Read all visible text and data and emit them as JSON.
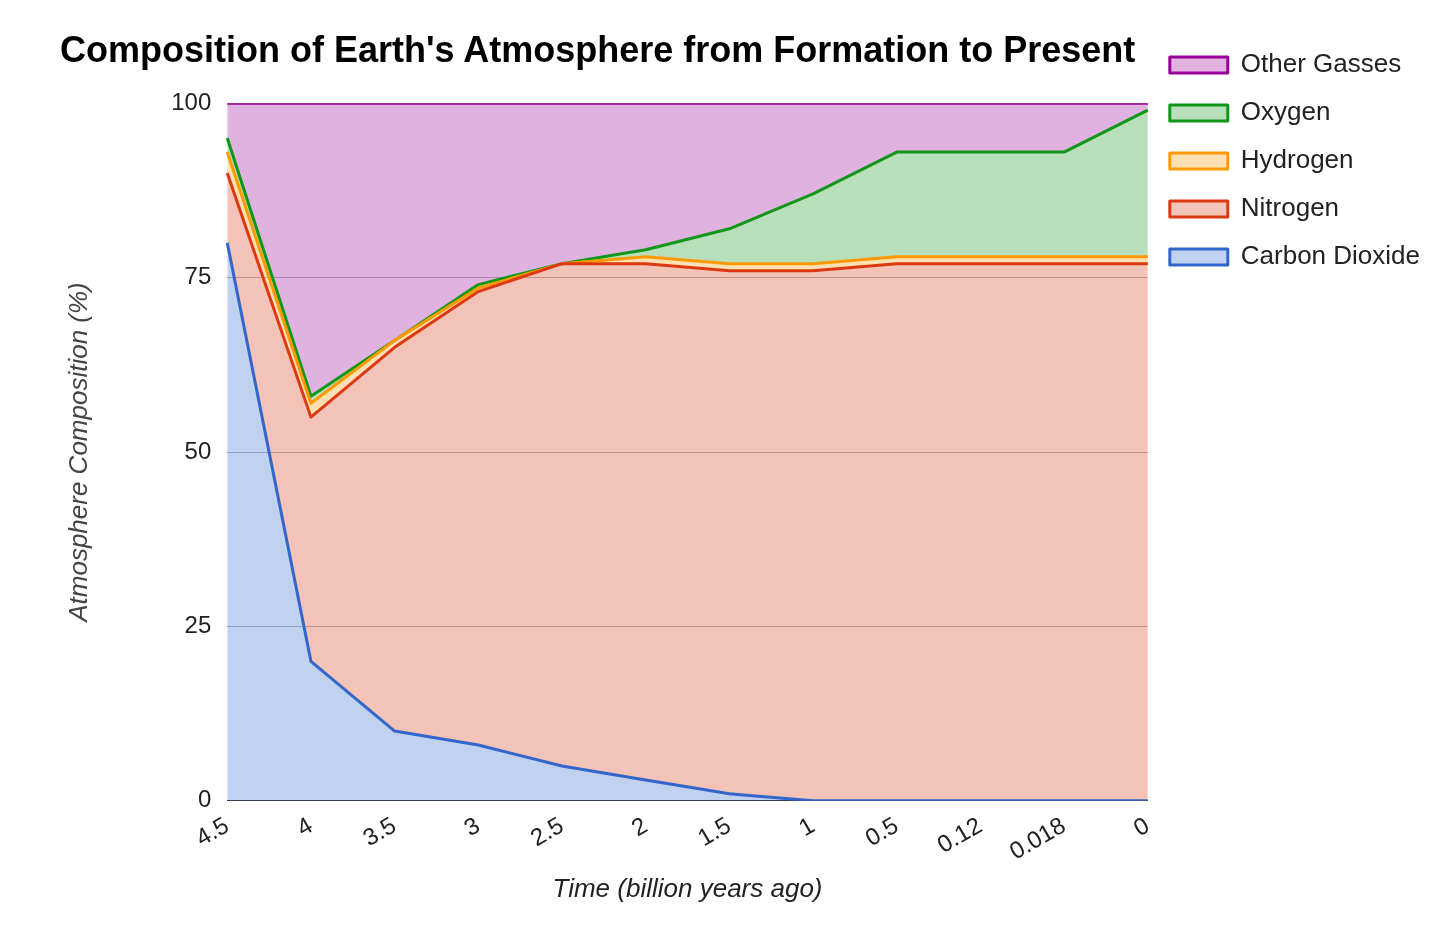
{
  "chart_data": {
    "type": "area",
    "stacked": true,
    "title": "Composition of Earth's Atmosphere from Formation to Present",
    "xlabel": "Time (billion years ago)",
    "ylabel": "Atmosphere Composition (%)",
    "categories": [
      "4.5",
      "4",
      "3.5",
      "3",
      "2.5",
      "2",
      "1.5",
      "1",
      "0.5",
      "0.12",
      "0.018",
      "0"
    ],
    "series": [
      {
        "name": "Carbon Dioxide",
        "color": "#3366cc",
        "values": [
          80,
          20,
          10,
          8,
          5,
          3,
          1,
          0,
          0,
          0,
          0,
          0
        ]
      },
      {
        "name": "Nitrogen",
        "color": "#dc3912",
        "values": [
          10,
          35,
          55,
          65,
          72,
          74,
          75,
          76,
          77,
          77,
          77,
          77
        ]
      },
      {
        "name": "Hydrogen",
        "color": "#ff9900",
        "values": [
          3,
          2,
          1,
          0.5,
          0,
          1,
          1,
          1,
          1,
          1,
          1,
          1
        ]
      },
      {
        "name": "Oxygen",
        "color": "#109618",
        "values": [
          2,
          1,
          0,
          0.5,
          0,
          1,
          5,
          10,
          15,
          15,
          15,
          21
        ]
      },
      {
        "name": "Other Gasses",
        "color": "#990099",
        "values": [
          5,
          42,
          34,
          26,
          23,
          21,
          18,
          13,
          7,
          7,
          7,
          1
        ]
      }
    ],
    "ylim": [
      0,
      100
    ],
    "yticks": [
      0,
      25,
      50,
      75,
      100
    ],
    "grid": "y",
    "legend": "right",
    "marker": "none",
    "line_style": "solid"
  }
}
